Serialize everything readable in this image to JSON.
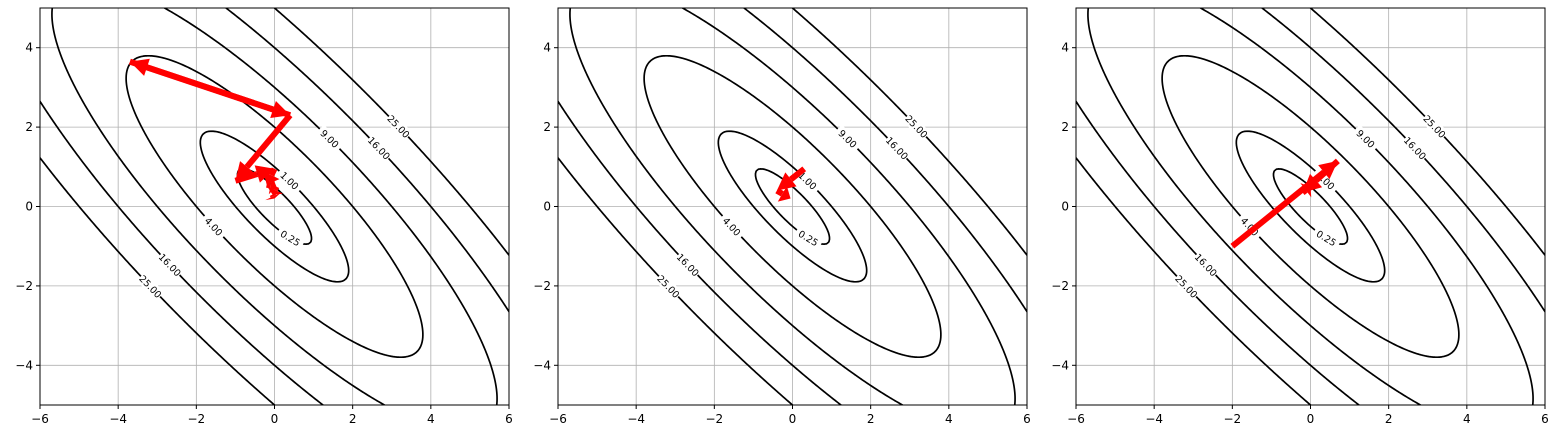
{
  "chart_data": [
    {
      "type": "contour",
      "xlim": [
        -6,
        6
      ],
      "ylim": [
        -5,
        5
      ],
      "x_ticks": [
        -6,
        -4,
        -2,
        0,
        2,
        4,
        6
      ],
      "y_ticks": [
        -4,
        -2,
        0,
        2,
        4
      ],
      "x_tick_labels": [
        "−6",
        "−4",
        "−2",
        "0",
        "2",
        "4",
        "6"
      ],
      "y_tick_labels": [
        "−4",
        "−2",
        "0",
        "2",
        "4"
      ],
      "grid": true,
      "contour_levels": [
        0.25,
        1,
        4,
        9,
        16,
        25
      ],
      "contour_labels": [
        "0.25",
        "1.00",
        "4.00",
        "9.00",
        "16.00",
        "25.00"
      ],
      "contour_color": "#000000",
      "arrow_color": "#ff0000",
      "arrow_path": [
        [
          0.4,
          2.3
        ],
        [
          -3.7,
          3.65
        ],
        [
          0.4,
          2.3
        ],
        [
          -1.0,
          0.65
        ],
        [
          0.0,
          0.95
        ],
        [
          -0.2,
          0.55
        ],
        [
          0.05,
          0.5
        ],
        [
          -0.05,
          0.3
        ],
        [
          0.0,
          0.2
        ]
      ]
    },
    {
      "type": "contour",
      "xlim": [
        -6,
        6
      ],
      "ylim": [
        -5,
        5
      ],
      "x_ticks": [
        -6,
        -4,
        -2,
        0,
        2,
        4,
        6
      ],
      "y_ticks": [
        -4,
        -2,
        0,
        2,
        4
      ],
      "x_tick_labels": [
        "−6",
        "−4",
        "−2",
        "0",
        "2",
        "4",
        "6"
      ],
      "y_tick_labels": [
        "−4",
        "−2",
        "0",
        "2",
        "4"
      ],
      "grid": true,
      "contour_levels": [
        0.25,
        1,
        4,
        9,
        16,
        25
      ],
      "contour_labels": [
        "0.25",
        "1.00",
        "4.00",
        "9.00",
        "16.00",
        "25.00"
      ],
      "contour_color": "#000000",
      "arrow_color": "#ff0000",
      "arrow_path": [
        [
          0.3,
          0.95
        ],
        [
          -0.4,
          0.4
        ],
        [
          -0.05,
          0.2
        ]
      ]
    },
    {
      "type": "contour",
      "xlim": [
        -6,
        6
      ],
      "ylim": [
        -5,
        5
      ],
      "x_ticks": [
        -6,
        -4,
        -2,
        0,
        2,
        4,
        6
      ],
      "y_ticks": [
        -4,
        -2,
        0,
        2,
        4
      ],
      "x_tick_labels": [
        "−6",
        "−4",
        "−2",
        "0",
        "2",
        "4",
        "6"
      ],
      "y_tick_labels": [
        "−4",
        "−2",
        "0",
        "2",
        "4"
      ],
      "grid": true,
      "contour_levels": [
        0.25,
        1,
        4,
        9,
        16,
        25
      ],
      "contour_labels": [
        "0.25",
        "1.00",
        "4.00",
        "9.00",
        "16.00",
        "25.00"
      ],
      "contour_color": "#000000",
      "arrow_color": "#ff0000",
      "arrow_path": [
        [
          -2.0,
          -1.0
        ],
        [
          0.7,
          1.15
        ],
        [
          -0.2,
          0.35
        ],
        [
          0.0,
          0.5
        ]
      ]
    }
  ]
}
